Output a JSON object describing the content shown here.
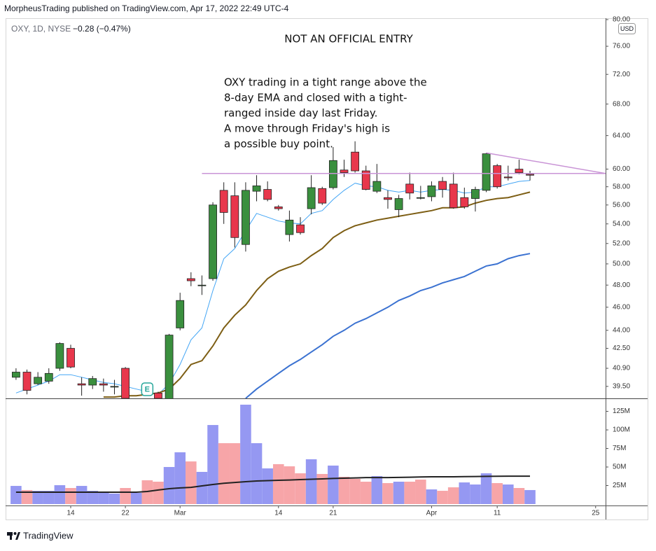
{
  "header": {
    "publisher": "MorpheusTrading published on TradingView.com, Apr 17, 2022 22:49 UTC-4"
  },
  "legend": {
    "symbol": "OXY, 1D, NYSE",
    "change": "−0.28 (−0.47%)"
  },
  "currency": "USD",
  "footer": "TradingView",
  "chart_data": [
    {
      "type": "candlestick",
      "title": "NOT AN OFFICIAL ENTRY",
      "annotation_lines": [
        "OXY trading in a tight range above the",
        "8-day EMA and closed with a tight-",
        "ranged inside day last Friday.",
        "A move through Friday's high is",
        "a possible buy point."
      ],
      "earnings_marker": "E",
      "log_scale": true,
      "grid": false,
      "up_color": "#3a8f3e",
      "down_color": "#e8374c",
      "categories": [
        null,
        null,
        null,
        null,
        null,
        "14",
        null,
        null,
        null,
        null,
        "22",
        null,
        null,
        null,
        null,
        "Mar",
        null,
        null,
        null,
        null,
        null,
        null,
        null,
        null,
        "14",
        null,
        null,
        null,
        null,
        "21",
        null,
        null,
        null,
        null,
        null,
        null,
        null,
        null,
        "Apr",
        null,
        null,
        null,
        null,
        null,
        "11",
        null,
        null,
        null,
        null,
        null,
        null,
        null,
        null,
        "25"
      ],
      "open": [
        40.2,
        40.6,
        39.7,
        39.9,
        40.9,
        42.5,
        39.7,
        39.6,
        39.7,
        39.5,
        40.9,
        null,
        null,
        39.0,
        38.3,
        44.2,
        48.6,
        48.0,
        48.6,
        57.6,
        57.0,
        51.9,
        57.5,
        57.7,
        55.8,
        52.9,
        53.9,
        55.6,
        57.8,
        57.9,
        59.9,
        62.0,
        59.8,
        57.5,
        56.8,
        55.5,
        58.3,
        56.8,
        56.9,
        58.6,
        58.3,
        56.8,
        56.7,
        57.6,
        60.4,
        59.1,
        60.0,
        59.4,
        null,
        null,
        null,
        null,
        null,
        null
      ],
      "high": [
        40.9,
        40.8,
        40.6,
        40.9,
        43.0,
        42.8,
        40.2,
        40.3,
        40.1,
        40.0,
        41.0,
        null,
        null,
        39.1,
        43.7,
        47.3,
        49.2,
        48.9,
        56.3,
        58.5,
        58.5,
        58.5,
        59.3,
        58.6,
        56.0,
        55.4,
        54.7,
        59.3,
        58.0,
        62.6,
        61.1,
        63.3,
        60.4,
        60.6,
        57.6,
        57.1,
        59.6,
        58.1,
        58.6,
        59.1,
        59.6,
        57.9,
        58.0,
        61.9,
        60.6,
        60.4,
        61.1,
        59.8,
        null,
        null,
        null,
        null,
        null,
        null
      ],
      "low": [
        40.0,
        38.9,
        39.6,
        39.7,
        40.7,
        40.9,
        38.8,
        39.3,
        39.1,
        38.9,
        38.6,
        null,
        null,
        38.6,
        38.3,
        44.0,
        47.9,
        47.1,
        48.4,
        54.0,
        51.6,
        51.2,
        56.4,
        56.4,
        55.4,
        52.2,
        52.9,
        55.0,
        56.0,
        57.7,
        59.1,
        59.6,
        57.6,
        57.3,
        55.6,
        54.7,
        56.6,
        56.6,
        56.4,
        56.8,
        55.6,
        55.6,
        55.3,
        57.4,
        57.8,
        58.7,
        59.4,
        58.7,
        null,
        null,
        null,
        null,
        null,
        null
      ],
      "close": [
        40.6,
        39.2,
        40.2,
        40.5,
        42.9,
        41.0,
        39.6,
        40.1,
        39.6,
        39.5,
        38.6,
        null,
        null,
        38.6,
        43.6,
        46.6,
        48.4,
        48.0,
        56.0,
        55.2,
        52.6,
        57.6,
        58.1,
        56.6,
        55.6,
        54.4,
        53.1,
        57.9,
        56.2,
        61.0,
        59.6,
        59.8,
        57.7,
        58.6,
        56.6,
        56.7,
        57.3,
        56.8,
        58.1,
        57.7,
        55.7,
        55.8,
        57.7,
        61.8,
        58.0,
        59.0,
        59.6,
        59.3,
        null,
        null,
        null,
        null,
        null,
        null
      ],
      "lines": [
        {
          "color": "#42a5f5",
          "values": [
            39.0,
            39.3,
            39.6,
            39.9,
            40.4,
            40.4,
            40.2,
            40.0,
            39.8,
            39.7,
            39.5,
            39.3,
            39.1,
            38.9,
            39.7,
            41.2,
            43.2,
            44.2,
            47.5,
            50.5,
            51.5,
            53.3,
            55.1,
            54.7,
            54.3,
            54.1,
            54.0,
            55.1,
            55.4,
            56.6,
            57.6,
            58.4,
            58.1,
            58.0,
            57.6,
            57.4,
            57.6,
            57.4,
            57.6,
            57.7,
            57.6,
            57.3,
            57.4,
            58.0,
            58.0,
            58.3,
            58.6,
            58.7,
            null,
            null,
            null,
            null,
            null,
            null
          ]
        },
        {
          "color": "#7d5e14",
          "values": [
            null,
            null,
            null,
            null,
            null,
            null,
            null,
            null,
            38.7,
            38.7,
            38.8,
            38.8,
            38.9,
            39.0,
            39.3,
            40.1,
            41.2,
            41.5,
            42.7,
            44.2,
            45.3,
            46.2,
            47.5,
            48.6,
            49.3,
            49.7,
            50.0,
            50.8,
            51.5,
            52.6,
            53.3,
            53.8,
            54.1,
            54.4,
            54.6,
            54.8,
            55.0,
            55.2,
            55.4,
            55.7,
            55.7,
            55.8,
            56.2,
            56.5,
            56.7,
            56.8,
            57.1,
            57.4,
            null,
            null,
            null,
            null,
            null,
            null
          ]
        },
        {
          "color": "#3b72d1",
          "values": [
            null,
            null,
            null,
            null,
            null,
            null,
            null,
            null,
            null,
            null,
            null,
            null,
            null,
            null,
            null,
            null,
            null,
            null,
            null,
            null,
            null,
            38.6,
            39.3,
            39.9,
            40.5,
            41.1,
            41.6,
            42.2,
            42.8,
            43.5,
            44.0,
            44.6,
            45.0,
            45.5,
            46.0,
            46.6,
            47.0,
            47.5,
            47.8,
            48.2,
            48.5,
            48.8,
            49.3,
            49.8,
            50.0,
            50.5,
            50.8,
            51.0,
            null,
            null,
            null,
            null,
            null,
            null
          ]
        }
      ],
      "horizontal_line": {
        "value": 59.5,
        "color": "#c994d6"
      },
      "trendline": {
        "values": [
          61.9,
          59.5
        ],
        "color": "#c994d6"
      },
      "ylim": [
        38.6,
        80
      ],
      "yticks": [
        {
          "value": 80,
          "label": "80.00"
        },
        {
          "value": 76,
          "label": "76.00"
        },
        {
          "value": 72,
          "label": "72.00"
        },
        {
          "value": 68,
          "label": "68.00"
        },
        {
          "value": 64,
          "label": "64.00"
        },
        {
          "value": 60,
          "label": "60.00"
        },
        {
          "value": 58,
          "label": "58.00"
        },
        {
          "value": 56,
          "label": "56.00"
        },
        {
          "value": 54,
          "label": "54.00"
        },
        {
          "value": 52,
          "label": "52.00"
        },
        {
          "value": 50,
          "label": "50.00"
        },
        {
          "value": 48,
          "label": "48.00"
        },
        {
          "value": 46,
          "label": "46.00"
        },
        {
          "value": 44,
          "label": "44.00"
        },
        {
          "value": 42.5,
          "label": "42.50"
        },
        {
          "value": 40.9,
          "label": "40.90"
        },
        {
          "value": 39.5,
          "label": "39.50"
        }
      ]
    },
    {
      "type": "bar",
      "grid": false,
      "values": [
        24.5,
        18.9,
        17.9,
        17.9,
        25.5,
        21.7,
        24.5,
        17.9,
        15.1,
        14.2,
        21.7,
        15.1,
        32.1,
        30.2,
        50,
        69.8,
        57.5,
        43.4,
        106.6,
        82.1,
        82.1,
        134,
        82.1,
        48.1,
        53.8,
        50.9,
        41.5,
        60.4,
        40.6,
        51.9,
        36.8,
        34.0,
        30.2,
        37.7,
        28.3,
        30.2,
        30.2,
        33.0,
        19.8,
        17.9,
        22.6,
        29.2,
        26.4,
        41.5,
        28.3,
        26.4,
        21.7,
        18.9,
        null,
        null,
        null,
        null,
        null,
        null
      ],
      "colors": [
        "#9598f2",
        "#f7a5a8",
        "#9598f2",
        "#9598f2",
        "#9598f2",
        "#f7a5a8",
        "#9598f2",
        "#9598f2",
        "#9598f2",
        "#9598f2",
        "#f7a5a8",
        "#9598f2",
        "#f7a5a8",
        "#f7a5a8",
        "#9598f2",
        "#9598f2",
        "#f7a5a8",
        "#9598f2",
        "#9598f2",
        "#f7a5a8",
        "#f7a5a8",
        "#9598f2",
        "#9598f2",
        "#9598f2",
        "#f7a5a8",
        "#f7a5a8",
        "#f7a5a8",
        "#9598f2",
        "#f7a5a8",
        "#9598f2",
        "#f7a5a8",
        "#f7a5a8",
        "#f7a5a8",
        "#9598f2",
        "#f7a5a8",
        "#9598f2",
        "#f7a5a8",
        "#f7a5a8",
        "#9598f2",
        "#f7a5a8",
        "#f7a5a8",
        "#9598f2",
        "#9598f2",
        "#9598f2",
        "#f7a5a8",
        "#9598f2",
        "#f7a5a8",
        "#9598f2",
        null,
        null,
        null,
        null,
        null,
        null
      ],
      "lines": [
        {
          "color": "#222222",
          "values": [
            16,
            16,
            16,
            16,
            16,
            16,
            16,
            16,
            16,
            16,
            16,
            16,
            17,
            19,
            20.8,
            21.8,
            22.6,
            24.5,
            26.4,
            28,
            29.2,
            30.2,
            31.1,
            31.6,
            32.1,
            32.5,
            33,
            33.5,
            34,
            34.5,
            34.9,
            35.3,
            35.8,
            35.8,
            35.8,
            36,
            36.2,
            36.5,
            36.8,
            36.8,
            36.8,
            37,
            37.2,
            37.4,
            37.5,
            37.7,
            37.7,
            37.7,
            null,
            null,
            null,
            null,
            null,
            null
          ]
        }
      ],
      "ylim": [
        0,
        142.5
      ],
      "yticks": [
        {
          "value": 125,
          "label": "125M"
        },
        {
          "value": 100,
          "label": "100M"
        },
        {
          "value": 75,
          "label": "75M"
        },
        {
          "value": 50,
          "label": "50M"
        },
        {
          "value": 25,
          "label": "25M"
        }
      ]
    }
  ]
}
